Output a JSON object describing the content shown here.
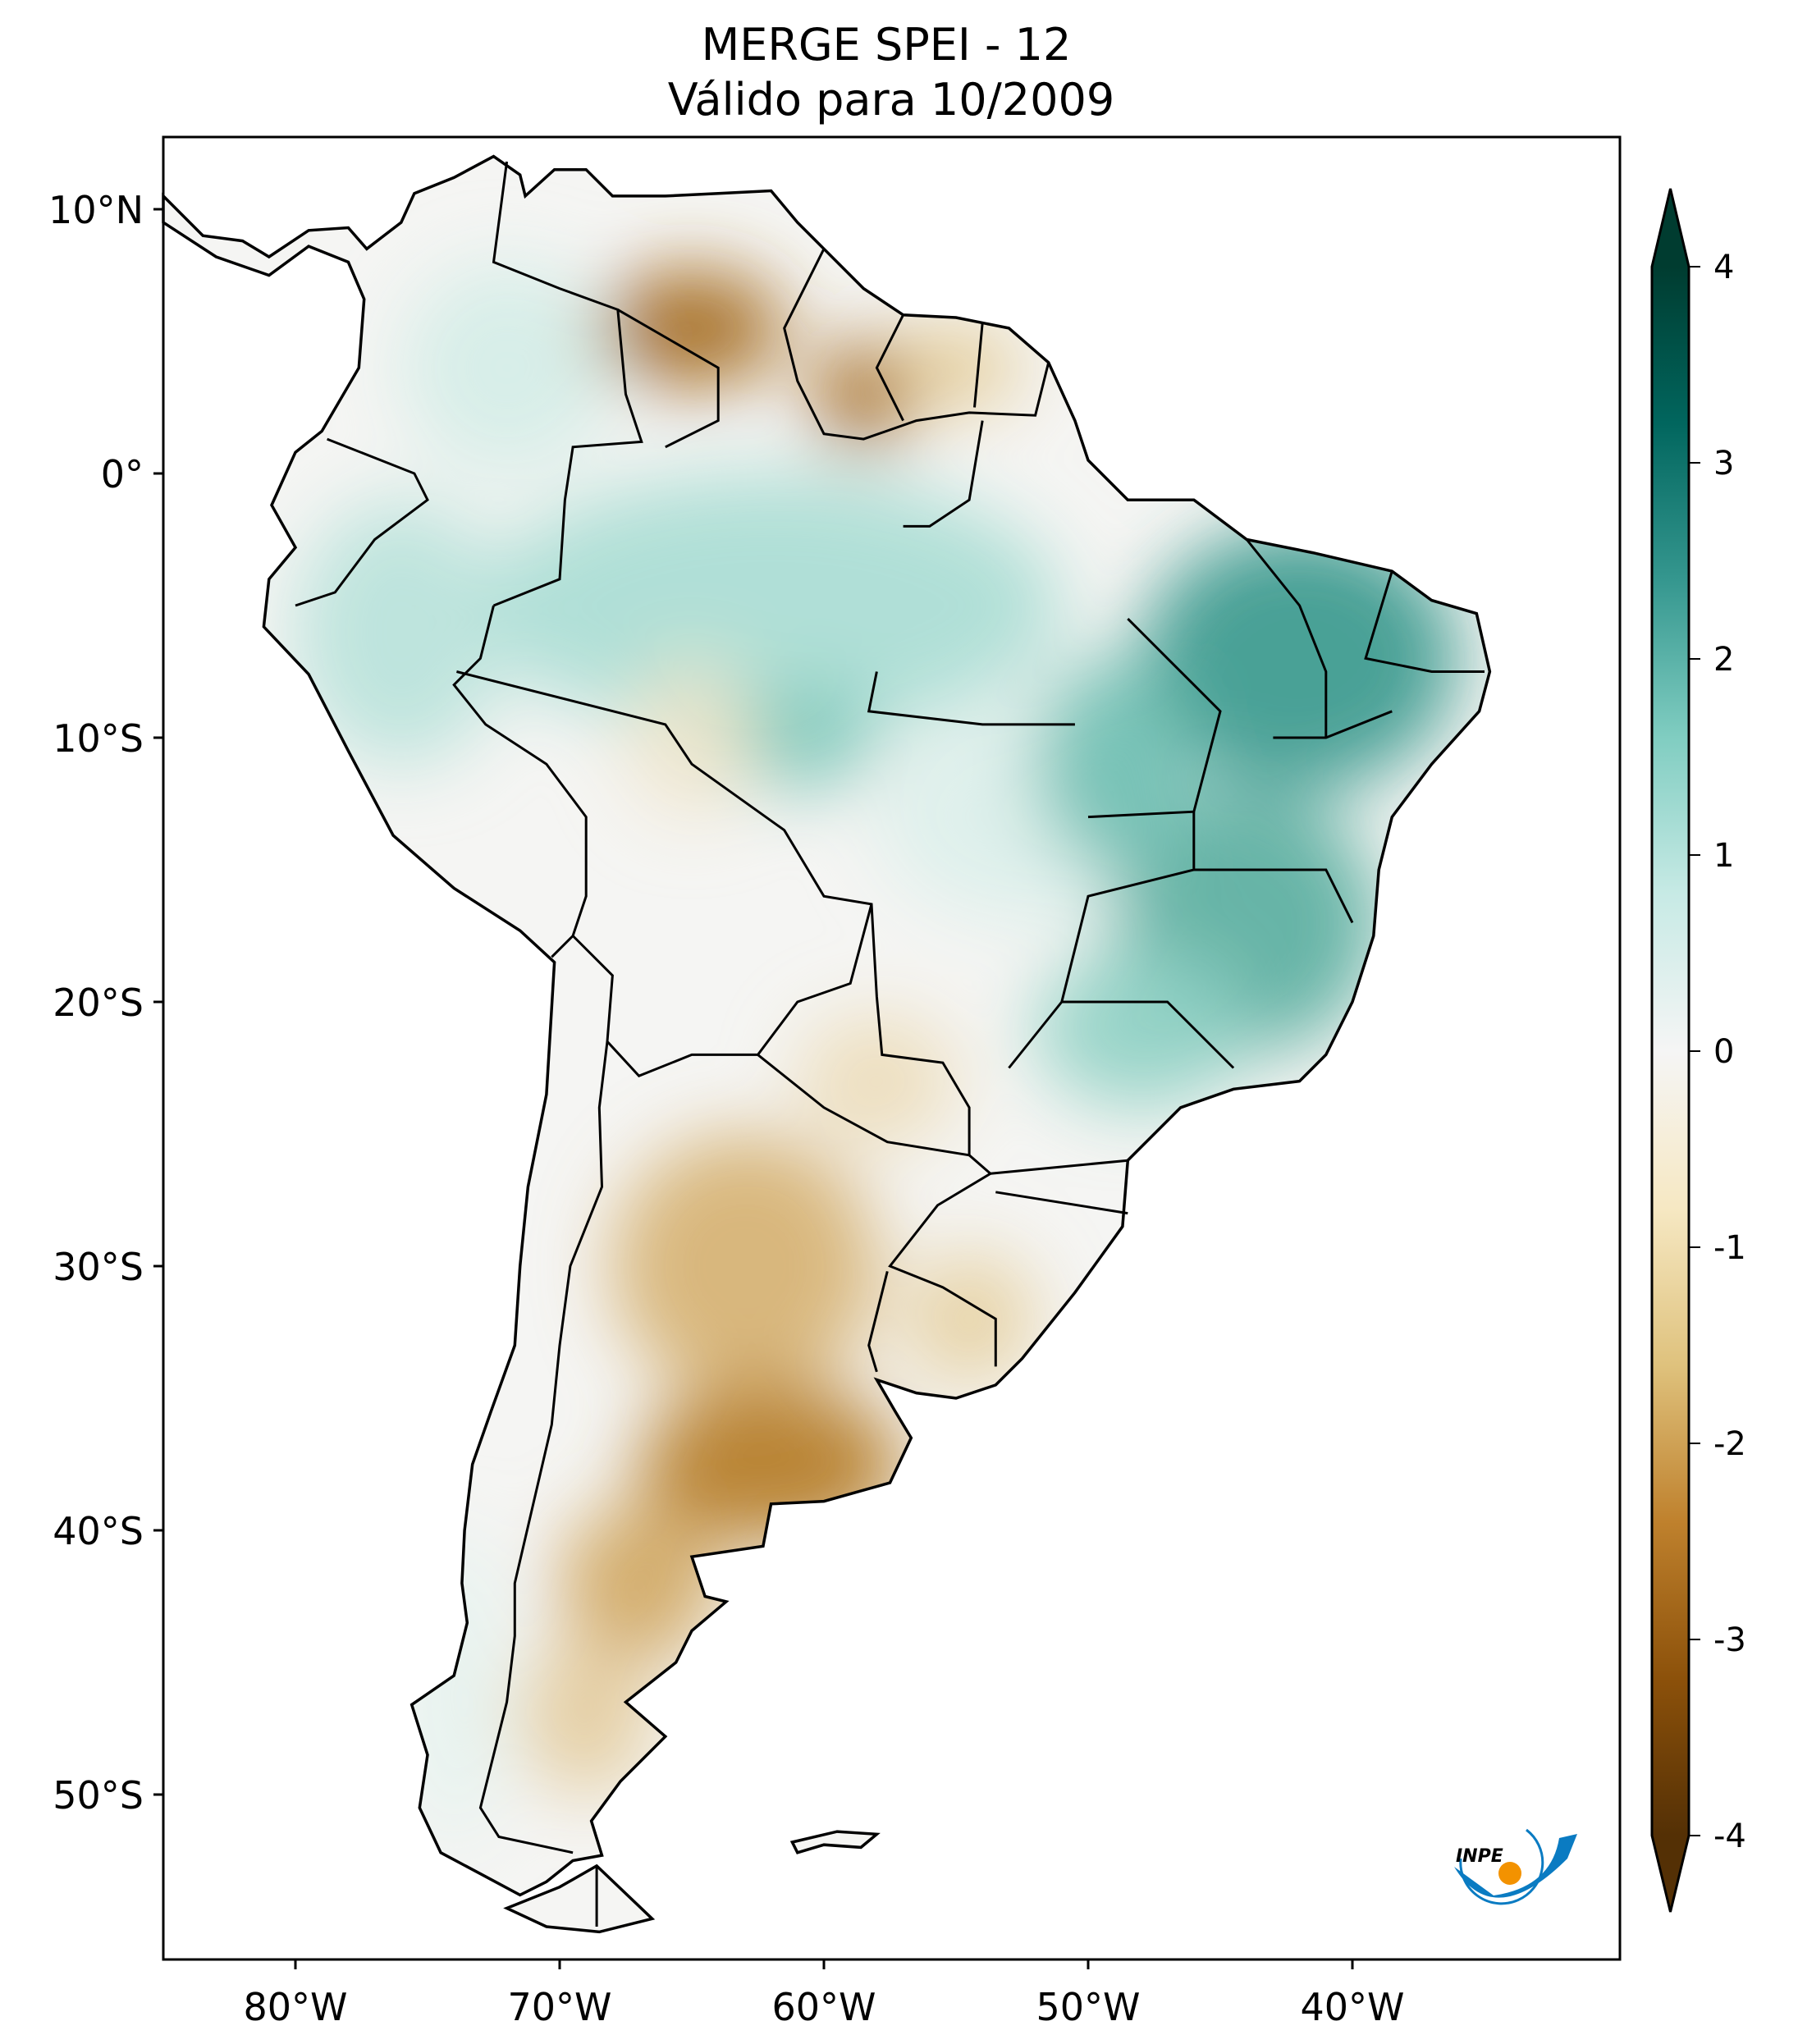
{
  "title": {
    "line1": "MERGE   SPEI - 12",
    "line2": "Válido para 10/2009"
  },
  "axes": {
    "lon_ticks": [
      {
        "value": -80,
        "label": "80°W"
      },
      {
        "value": -70,
        "label": "70°W"
      },
      {
        "value": -60,
        "label": "60°W"
      },
      {
        "value": -50,
        "label": "50°W"
      },
      {
        "value": -40,
        "label": "40°W"
      }
    ],
    "lat_ticks": [
      {
        "value": 10,
        "label": "10°N"
      },
      {
        "value": 0,
        "label": "0°"
      },
      {
        "value": -10,
        "label": "10°S"
      },
      {
        "value": -20,
        "label": "20°S"
      },
      {
        "value": -30,
        "label": "30°S"
      },
      {
        "value": -40,
        "label": "40°S"
      },
      {
        "value": -50,
        "label": "50°S"
      }
    ],
    "lon_range": [
      -85,
      -30
    ],
    "lat_range": [
      -56,
      13
    ]
  },
  "colorbar": {
    "range": [
      -4,
      4
    ],
    "extend": "both",
    "ticks": [
      {
        "value": 4,
        "label": "4"
      },
      {
        "value": 3,
        "label": "3"
      },
      {
        "value": 2,
        "label": "2"
      },
      {
        "value": 1,
        "label": "1"
      },
      {
        "value": 0,
        "label": "0"
      },
      {
        "value": -1,
        "label": "-1"
      },
      {
        "value": -2,
        "label": "-2"
      },
      {
        "value": -3,
        "label": "-3"
      },
      {
        "value": -4,
        "label": "-4"
      }
    ],
    "colors": [
      "#543005",
      "#8c510a",
      "#bf812d",
      "#dfc27d",
      "#f6e8c3",
      "#f5f5f5",
      "#c7eae5",
      "#80cdc1",
      "#35978f",
      "#01665e",
      "#003c30"
    ]
  },
  "logo": {
    "text": "INPE",
    "arc_color": "#0a7bc2",
    "dot_color": "#f39200"
  }
}
